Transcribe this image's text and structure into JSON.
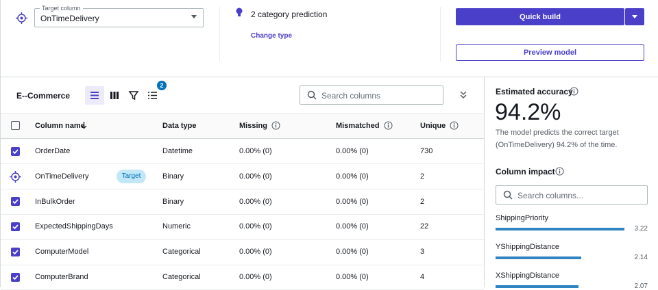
{
  "target": {
    "label": "Target column",
    "value": "OnTimeDelivery"
  },
  "prediction": {
    "text": "2 category prediction",
    "link": "Change type"
  },
  "actions": {
    "quick_build": "Quick build",
    "preview": "Preview model"
  },
  "dataset": {
    "name": "E--Commerce",
    "filter_count": "2",
    "search_placeholder": "Search columns"
  },
  "table": {
    "headers": [
      "Column name",
      "Data type",
      "Missing",
      "Mismatched",
      "Unique"
    ],
    "rows": [
      {
        "checked": true,
        "name": "OrderDate",
        "type": "Datetime",
        "missing": "0.00% (0)",
        "mismatched": "0.00% (0)",
        "unique": "730"
      },
      {
        "checked": false,
        "name": "OnTimeDelivery",
        "tag": "Target",
        "type": "Binary",
        "missing": "0.00% (0)",
        "mismatched": "0.00% (0)",
        "unique": "2"
      },
      {
        "checked": true,
        "name": "InBulkOrder",
        "type": "Binary",
        "missing": "0.00% (0)",
        "mismatched": "0.00% (0)",
        "unique": "2"
      },
      {
        "checked": true,
        "name": "ExpectedShippingDays",
        "type": "Numeric",
        "missing": "0.00% (0)",
        "mismatched": "0.00% (0)",
        "unique": "22"
      },
      {
        "checked": true,
        "name": "ComputerModel",
        "type": "Categorical",
        "missing": "0.00% (0)",
        "mismatched": "0.00% (0)",
        "unique": "3"
      },
      {
        "checked": true,
        "name": "ComputerBrand",
        "type": "Categorical",
        "missing": "0.00% (0)",
        "mismatched": "0.00% (0)",
        "unique": "4"
      }
    ]
  },
  "accuracy": {
    "title": "Estimated accuracy",
    "value": "94.2%",
    "description": "The model predicts the correct target (OnTimeDelivery) 94.2% of the time."
  },
  "impact": {
    "title": "Column impact",
    "search_placeholder": "Search columns...",
    "items": [
      {
        "name": "ShippingPriority",
        "value": 3.22
      },
      {
        "name": "YShippingDistance",
        "value": 2.14
      },
      {
        "name": "XShippingDistance",
        "value": 2.07
      }
    ]
  }
}
